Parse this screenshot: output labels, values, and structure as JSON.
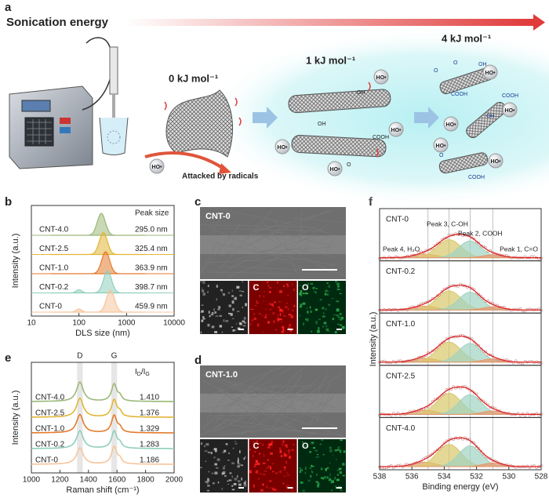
{
  "panel_labels": {
    "a": "a",
    "b": "b",
    "c": "c",
    "d": "d",
    "e": "e",
    "f": "f"
  },
  "a": {
    "arrow_label": "Sonication energy",
    "stages": [
      "0 kJ mol⁻¹",
      "1 kJ mol⁻¹",
      "4 kJ mol⁻¹"
    ],
    "attack_label": "Attacked by radicals",
    "radical": "HO•",
    "groups": {
      "oh": "OH",
      "cooh": "COOH",
      "o": "O"
    }
  },
  "b": {
    "y_label": "Intensity (a.u.)",
    "x_label": "DLS size (nm)",
    "xticks": [
      10,
      100,
      1000,
      10000
    ],
    "xlim": [
      10,
      10000
    ],
    "header": "Peak size",
    "samples": [
      {
        "name": "CNT-4.0",
        "color": "#9cb878",
        "size": {
          "value": 295.0,
          "label": "295.0 nm"
        }
      },
      {
        "name": "CNT-2.5",
        "color": "#e2b536",
        "size": {
          "value": 325.4,
          "label": "325.4 nm"
        }
      },
      {
        "name": "CNT-1.0",
        "color": "#e57b2e",
        "size": {
          "value": 363.9,
          "label": "363.9 nm"
        }
      },
      {
        "name": "CNT-0.2",
        "color": "#8fcfbd",
        "size": {
          "value": 398.7,
          "label": "398.7 nm"
        }
      },
      {
        "name": "CNT-0",
        "color": "#f6c59c",
        "size": {
          "value": 459.9,
          "label": "459.9 nm"
        }
      }
    ]
  },
  "c": {
    "label": "CNT-0",
    "maps": [
      "C",
      "O"
    ]
  },
  "d": {
    "label": "CNT-1.0",
    "maps": [
      "C",
      "O"
    ]
  },
  "e": {
    "x_label": "Raman shift (cm⁻¹)",
    "y_label": "Intensity (a.u.)",
    "xticks": [
      1000,
      1200,
      1400,
      1600,
      1800,
      2000
    ],
    "xlim": [
      1000,
      2000
    ],
    "bands": [
      "D",
      "G"
    ],
    "ratio_header": [
      "I",
      "D",
      "/I",
      "G"
    ],
    "samples": [
      {
        "name": "CNT-4.0",
        "color": "#9cb878",
        "ratio": {
          "value": 1.41,
          "label": "1.410"
        }
      },
      {
        "name": "CNT-2.5",
        "color": "#e2b536",
        "ratio": {
          "value": 1.376,
          "label": "1.376"
        }
      },
      {
        "name": "CNT-1.0",
        "color": "#e57b2e",
        "ratio": {
          "value": 1.329,
          "label": "1.329"
        }
      },
      {
        "name": "CNT-0.2",
        "color": "#8fcfbd",
        "ratio": {
          "value": 1.283,
          "label": "1.283"
        }
      },
      {
        "name": "CNT-0",
        "color": "#f6c59c",
        "ratio": {
          "value": 1.186,
          "label": "1.186"
        }
      }
    ]
  },
  "f": {
    "x_label": "Binding energy (eV)",
    "y_label": "Intensity (a.u.)",
    "xticks": [
      538,
      536,
      534,
      532,
      530,
      528
    ],
    "xlim": [
      538,
      528
    ],
    "peaks": [
      "Peak 4, H₂O",
      "Peak 3, C-OH",
      "Peak 2, COOH",
      "Peak 1, C=O"
    ],
    "samples": [
      "CNT-0",
      "CNT-0.2",
      "CNT-1.0",
      "CNT-2.5",
      "CNT-4.0"
    ]
  }
}
